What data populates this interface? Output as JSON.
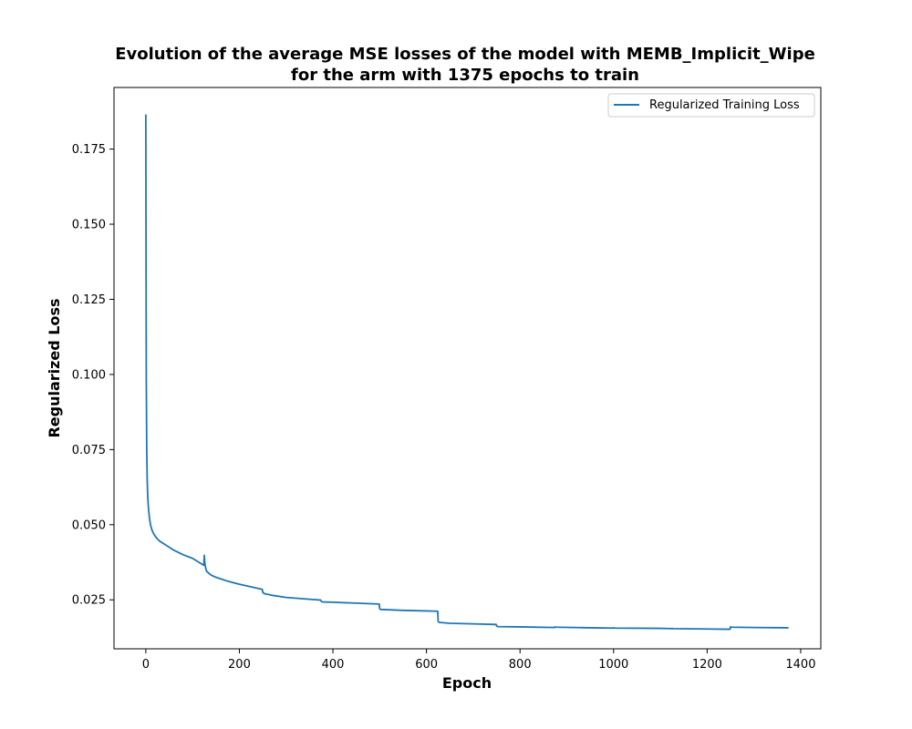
{
  "chart_data": {
    "type": "line",
    "title_line1": "Evolution of the average MSE losses of the model with MEMB_Implicit_Wipe",
    "title_line2": "for the arm with 1375 epochs to train",
    "xlabel": "Epoch",
    "ylabel": "Regularized Loss",
    "xlim": [
      -68,
      1443
    ],
    "ylim": [
      0.0087,
      0.1955
    ],
    "x_ticks": [
      0,
      200,
      400,
      600,
      800,
      1000,
      1200,
      1400
    ],
    "x_tick_labels": [
      "0",
      "200",
      "400",
      "600",
      "800",
      "1000",
      "1200",
      "1400"
    ],
    "y_ticks": [
      0.025,
      0.05,
      0.075,
      0.1,
      0.125,
      0.15,
      0.175
    ],
    "y_tick_labels": [
      "0.025",
      "0.050",
      "0.075",
      "0.100",
      "0.125",
      "0.150",
      "0.175"
    ],
    "grid": false,
    "legend_position": "top-right",
    "series": [
      {
        "name": "Regularized Training Loss",
        "color": "#1f77b4",
        "x": [
          0,
          1,
          2,
          3,
          4,
          5,
          6,
          8,
          10,
          12,
          15,
          20,
          25,
          30,
          40,
          50,
          60,
          80,
          100,
          124,
          125,
          126,
          128,
          130,
          135,
          140,
          150,
          175,
          200,
          249,
          250,
          252,
          255,
          270,
          300,
          350,
          374,
          375,
          378,
          400,
          450,
          499,
          500,
          502,
          550,
          600,
          624,
          625,
          627,
          650,
          700,
          749,
          750,
          752,
          800,
          874,
          875,
          877,
          950,
          999,
          1000,
          1002,
          1100,
          1124,
          1125,
          1127,
          1200,
          1249,
          1250,
          1252,
          1300,
          1374
        ],
        "values": [
          0.1865,
          0.1,
          0.075,
          0.065,
          0.06,
          0.057,
          0.055,
          0.052,
          0.05,
          0.0488,
          0.0475,
          0.0462,
          0.0452,
          0.0445,
          0.0435,
          0.0425,
          0.0415,
          0.04,
          0.0388,
          0.0365,
          0.0398,
          0.0375,
          0.0355,
          0.0345,
          0.0338,
          0.0332,
          0.0325,
          0.0312,
          0.0302,
          0.0285,
          0.0275,
          0.0272,
          0.027,
          0.0265,
          0.0258,
          0.0252,
          0.0249,
          0.0245,
          0.0243,
          0.0242,
          0.0239,
          0.0236,
          0.022,
          0.0218,
          0.0215,
          0.0213,
          0.0212,
          0.0178,
          0.0175,
          0.0172,
          0.017,
          0.0168,
          0.0163,
          0.0161,
          0.016,
          0.0158,
          0.016,
          0.0159,
          0.0157,
          0.0156,
          0.0157,
          0.0156,
          0.0155,
          0.0154,
          0.0155,
          0.0154,
          0.0153,
          0.0152,
          0.016,
          0.0159,
          0.0158,
          0.0157
        ]
      }
    ]
  }
}
